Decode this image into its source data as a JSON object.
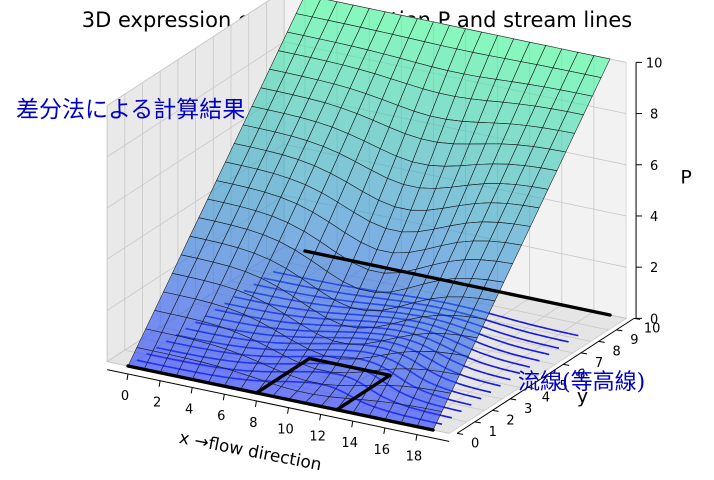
{
  "chart_data": {
    "type": "surface",
    "title": "3D expression of stream function P and stream lines",
    "xlabel": "x  →flow direction",
    "ylabel": "y",
    "zlabel": "P",
    "xlim": [
      0,
      19
    ],
    "ylim": [
      0,
      10
    ],
    "zlim": [
      0,
      10
    ],
    "x_ticks": [
      0,
      2,
      4,
      6,
      8,
      10,
      12,
      14,
      16,
      18
    ],
    "y_ticks": [
      0,
      1,
      2,
      3,
      4,
      5,
      6,
      7,
      8,
      9,
      10
    ],
    "z_ticks": [
      0,
      2,
      4,
      6,
      8,
      10
    ],
    "annotations": {
      "method": "差分法による計算結果",
      "streamlines": "流線(等高線)"
    },
    "walls": [
      {
        "x": [
          0,
          19
        ],
        "y": [
          0,
          0
        ]
      },
      {
        "x": [
          8,
          8
        ],
        "y": [
          0,
          3
        ]
      },
      {
        "x": [
          8,
          13
        ],
        "y": [
          3,
          3
        ]
      },
      {
        "x": [
          13,
          13
        ],
        "y": [
          0,
          3
        ]
      },
      {
        "x": [
          0,
          19
        ],
        "y": [
          10,
          10
        ]
      }
    ],
    "grid": true,
    "colormap": "winter"
  }
}
